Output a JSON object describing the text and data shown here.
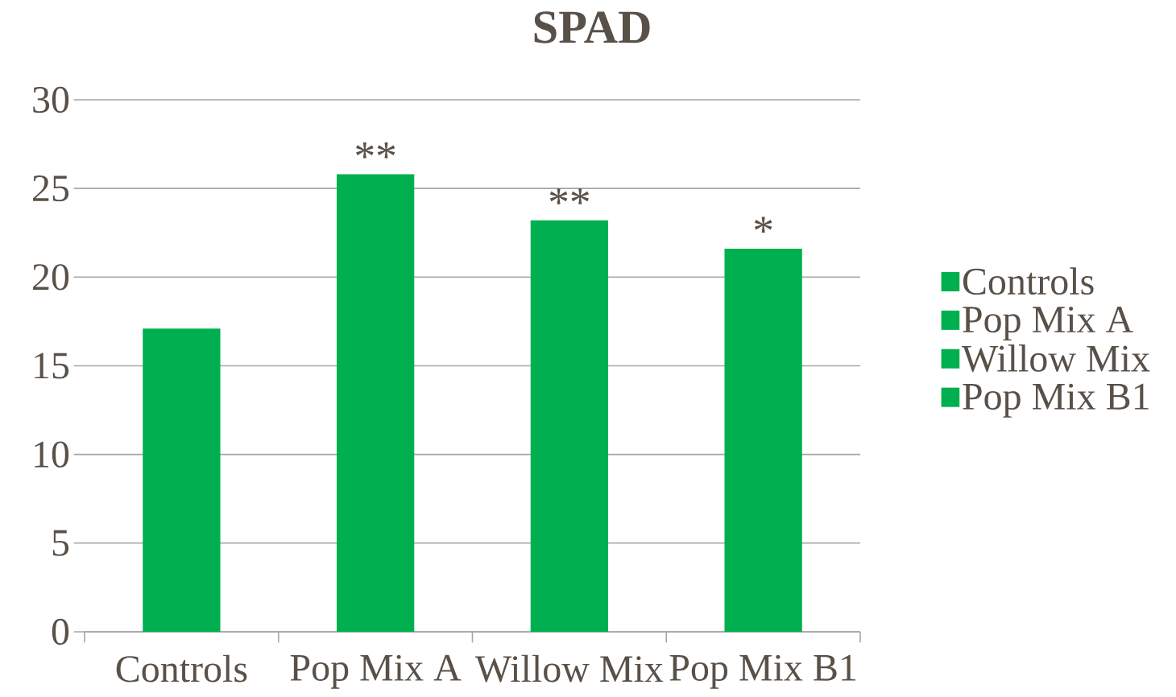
{
  "chart_data": {
    "type": "bar",
    "title": "SPAD",
    "categories": [
      "Controls",
      "Pop Mix A",
      "Willow Mix",
      "Pop Mix B1"
    ],
    "series": [
      {
        "name": "Controls",
        "color": "#00b050",
        "values": [
          17.1,
          null,
          null,
          null
        ]
      },
      {
        "name": "Pop Mix A",
        "color": "#00b050",
        "values": [
          null,
          25.8,
          null,
          null
        ]
      },
      {
        "name": "Willow Mix",
        "color": "#00b050",
        "values": [
          null,
          null,
          23.2,
          null
        ]
      },
      {
        "name": "Pop Mix B1",
        "color": "#00b050",
        "values": [
          null,
          null,
          null,
          21.6
        ]
      }
    ],
    "ylim": [
      0,
      30
    ],
    "yticks": [
      0,
      5,
      10,
      15,
      20,
      25,
      30
    ],
    "grid": "y",
    "legend": "right",
    "annotations": [
      "**",
      "**",
      "*"
    ]
  }
}
